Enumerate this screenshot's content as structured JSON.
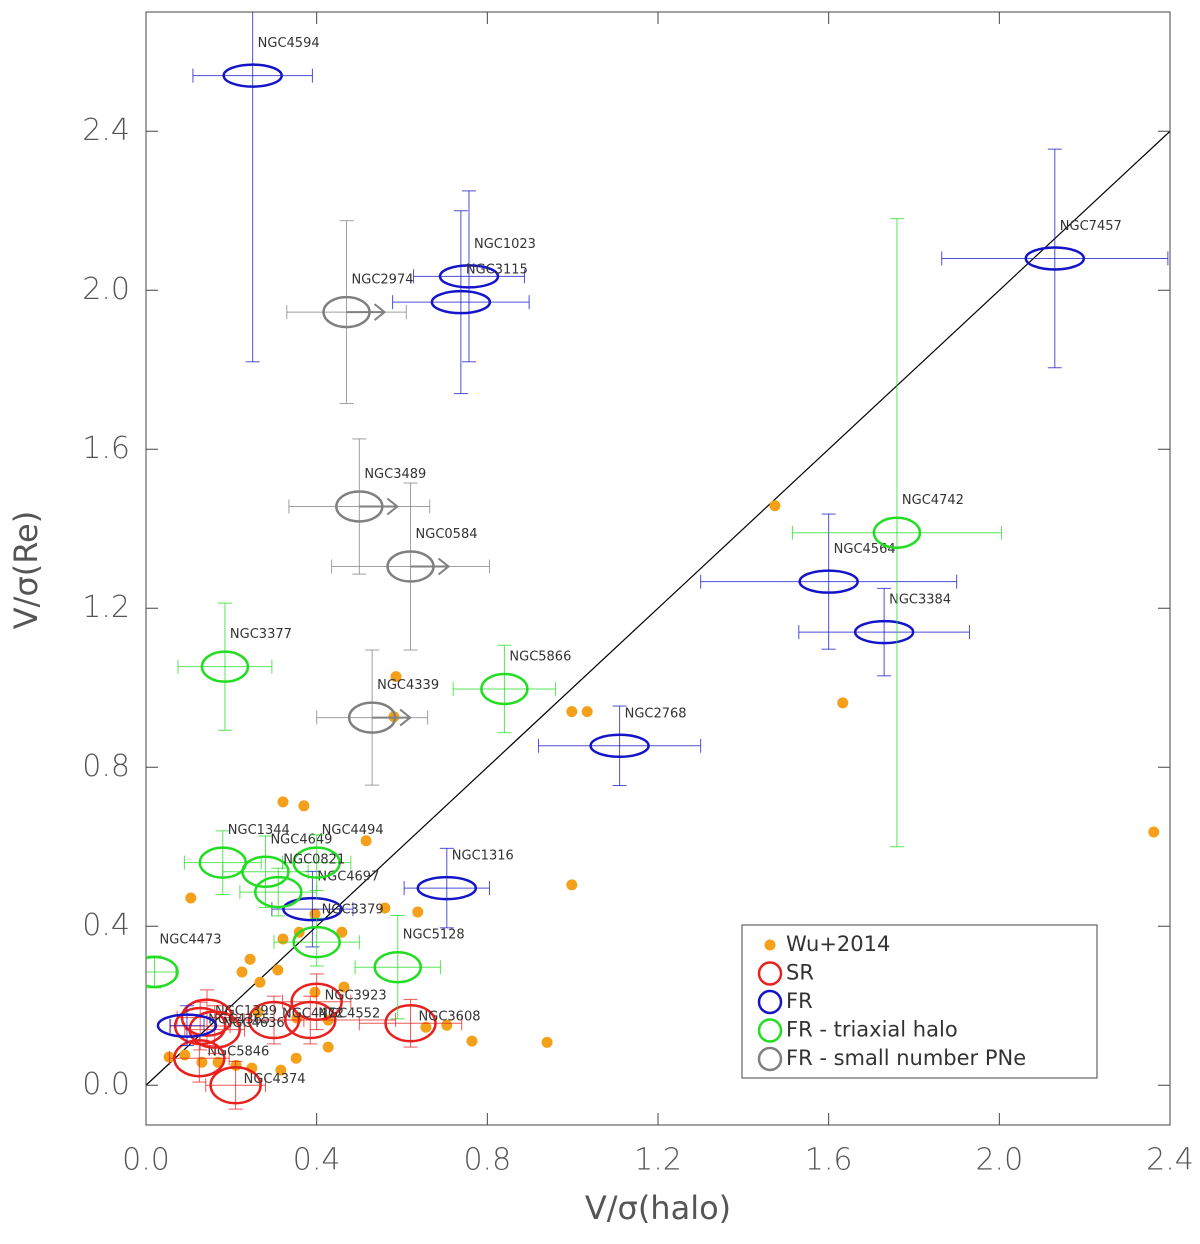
{
  "chart_data": {
    "type": "scatter",
    "x_label": "V/σ(halo)",
    "y_label": "V/σ(Re)",
    "xlim": [
      0,
      2.4
    ],
    "ylim": [
      -0.1,
      2.7
    ],
    "xticks": [
      {
        "value": 0,
        "label": "0.0"
      },
      0.4,
      0.8,
      1.2,
      1.6,
      {
        "value": 2,
        "label": "2.0"
      },
      2.4
    ],
    "yticks": [
      {
        "value": 0,
        "label": "0.0"
      },
      0.4,
      0.8,
      1.2,
      1.6,
      {
        "value": 2,
        "label": "2.0"
      },
      2.4
    ],
    "reference_line": {
      "x": [
        0,
        2.4
      ],
      "y": [
        0,
        2.4
      ]
    },
    "legend": "lower right",
    "series": [
      {
        "name": "Wu+2014",
        "color": "#f5a01a",
        "marker": "dot",
        "x": [
          1.474,
          1.633,
          2.362,
          0.586,
          0.998,
          1.034,
          0.581,
          0.998,
          0.321,
          0.37,
          0.516,
          0.105,
          0.56,
          0.637,
          0.396,
          0.321,
          0.359,
          0.459,
          0.244,
          0.225,
          0.309,
          0.267,
          0.464,
          0.396,
          0.262,
          0.354,
          0.427,
          0.705,
          0.656,
          0.764,
          0.94,
          0.427,
          0.352,
          0.091,
          0.131,
          0.169,
          0.211,
          0.316,
          0.248,
          0.054
        ],
        "y": [
          1.458,
          0.962,
          0.637,
          1.028,
          0.94,
          0.94,
          0.927,
          0.504,
          0.713,
          0.703,
          0.615,
          0.471,
          0.446,
          0.436,
          0.431,
          0.368,
          0.385,
          0.385,
          0.317,
          0.285,
          0.29,
          0.259,
          0.247,
          0.234,
          0.184,
          0.169,
          0.164,
          0.151,
          0.146,
          0.111,
          0.108,
          0.096,
          0.068,
          0.076,
          0.058,
          0.058,
          0.05,
          0.038,
          0.043,
          0.071
        ]
      },
      {
        "name": "SR",
        "color": "#e8201e",
        "marker": "ellipse",
        "labels": [
          "NGC5846",
          "NGC4374",
          "NGC3608",
          "NGC3923",
          "NGC4552",
          "NGC4472",
          "NGC1399",
          "NGC4636",
          "NGC4365"
        ],
        "x": [
          0.125,
          0.21,
          0.62,
          0.4,
          0.385,
          0.3,
          0.143,
          0.161,
          0.127
        ],
        "y": [
          0.068,
          0.0,
          0.156,
          0.21,
          0.164,
          0.164,
          0.17,
          0.14,
          0.149
        ],
        "xerr": [
          0.07,
          0.07,
          0.12,
          0.08,
          0.2,
          0.07,
          0.07,
          0.07,
          0.07
        ],
        "yerr": [
          0.06,
          0.06,
          0.06,
          0.07,
          0.06,
          0.06,
          0.07,
          0.06,
          0.06
        ]
      },
      {
        "name": "FR",
        "color": "#1414c8",
        "marker": "ellipse",
        "labels": [
          "NGC4594",
          "NGC1023",
          "NGC3115",
          "NGC7457",
          "NGC4564",
          "NGC3384",
          "NGC2768",
          "NGC1316",
          "NGC4697",
          null
        ],
        "x": [
          0.25,
          0.757,
          0.738,
          2.13,
          1.6,
          1.73,
          1.11,
          0.705,
          0.39,
          0.096
        ],
        "y": [
          2.54,
          2.035,
          1.97,
          2.08,
          1.267,
          1.14,
          0.854,
          0.496,
          0.443,
          0.15
        ],
        "xerr": [
          0.14,
          0.13,
          0.16,
          0.265,
          0.3,
          0.2,
          0.19,
          0.1,
          0.095,
          0.04
        ],
        "yerr": [
          0.72,
          0.215,
          0.23,
          0.275,
          0.17,
          0.11,
          0.1,
          0.1,
          0.095,
          0.05
        ]
      },
      {
        "name": "FR - triaxial halo",
        "color": "#22dd22",
        "marker": "ellipse",
        "labels": [
          "NGC4742",
          "NGC5866",
          "NGC3377",
          "NGC1344",
          "NGC4649",
          "NGC4494",
          "NGC0821",
          "NGC3379",
          "NGC5128",
          "NGC4473"
        ],
        "x": [
          1.76,
          0.84,
          0.185,
          0.18,
          0.28,
          0.4,
          0.31,
          0.4,
          0.59,
          0.02
        ],
        "y": [
          1.39,
          0.997,
          1.053,
          0.56,
          0.537,
          0.56,
          0.486,
          0.36,
          0.297,
          0.285
        ],
        "xerr": [
          0.245,
          0.12,
          0.11,
          0.09,
          0.1,
          0.08,
          0.09,
          0.1,
          0.1,
          0.05
        ],
        "yerr": [
          0.79,
          0.11,
          0.16,
          0.08,
          0.09,
          0.07,
          0.06,
          0.06,
          0.13,
          0.04
        ]
      },
      {
        "name": "FR - small number PNe",
        "color": "#808080",
        "marker": "ellipse-arrow",
        "labels": [
          "NGC2974",
          "NGC3489",
          "NGC0584",
          "NGC4339"
        ],
        "x": [
          0.47,
          0.5,
          0.62,
          0.53
        ],
        "y": [
          1.945,
          1.456,
          1.305,
          0.925
        ],
        "xerr": [
          0.14,
          0.165,
          0.185,
          0.13
        ],
        "yerr": [
          0.23,
          0.17,
          0.21,
          0.17
        ]
      }
    ]
  }
}
